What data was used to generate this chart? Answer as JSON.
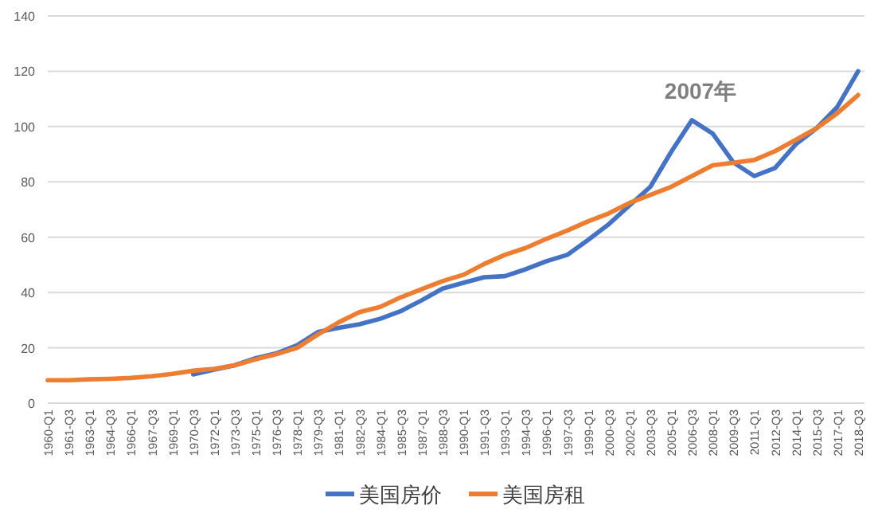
{
  "chart_data": {
    "type": "line",
    "categories": [
      "1960-Q1",
      "1961-Q3",
      "1963-Q1",
      "1964-Q3",
      "1966-Q1",
      "1967-Q3",
      "1969-Q1",
      "1970-Q3",
      "1972-Q1",
      "1973-Q3",
      "1975-Q1",
      "1976-Q3",
      "1978-Q1",
      "1979-Q3",
      "1981-Q1",
      "1982-Q3",
      "1984-Q1",
      "1985-Q3",
      "1987-Q1",
      "1988-Q3",
      "1990-Q1",
      "1991-Q3",
      "1993-Q1",
      "1994-Q3",
      "1996-Q1",
      "1997-Q3",
      "1999-Q1",
      "2000-Q3",
      "2002-Q1",
      "2003-Q3",
      "2005-Q1",
      "2006-Q3",
      "2008-Q1",
      "2009-Q3",
      "2011-Q1",
      "2012-Q3",
      "2014-Q1",
      "2015-Q3",
      "2017-Q1",
      "2018-Q3"
    ],
    "series": [
      {
        "name": "美国房价",
        "color": "#4472c4",
        "values": [
          null,
          null,
          null,
          null,
          null,
          null,
          null,
          10.4,
          12.1,
          13.7,
          16.2,
          18,
          20.9,
          25.7,
          27.2,
          28.5,
          30.5,
          33.3,
          37.2,
          41.4,
          43.5,
          45.5,
          45.9,
          48.4,
          51.3,
          53.6,
          59,
          64.7,
          71.5,
          78.2,
          90.8,
          102.3,
          97.5,
          87,
          82.1,
          85,
          93.6,
          99.4,
          107.1,
          120
        ]
      },
      {
        "name": "美国房租",
        "color": "#ed7d31",
        "values": [
          8.3,
          8.3,
          8.6,
          8.8,
          9.1,
          9.7,
          10.6,
          11.7,
          12.4,
          13.7,
          15.8,
          17.7,
          20,
          24.8,
          29.2,
          32.9,
          34.8,
          38.3,
          41.2,
          44.1,
          46.4,
          50.3,
          53.6,
          56.1,
          59.4,
          62.4,
          65.7,
          68.6,
          72.4,
          75.3,
          78.2,
          82.1,
          86,
          86.9,
          87.9,
          91.1,
          95.2,
          99.4,
          104.8,
          111.4
        ]
      }
    ],
    "ylim": [
      0,
      140
    ],
    "yticks": [
      0,
      20,
      40,
      60,
      80,
      100,
      120,
      140
    ],
    "grid": "y",
    "legend": "bottom",
    "marker": "none",
    "line_style": "solid",
    "annotations": [
      "2007年"
    ]
  }
}
